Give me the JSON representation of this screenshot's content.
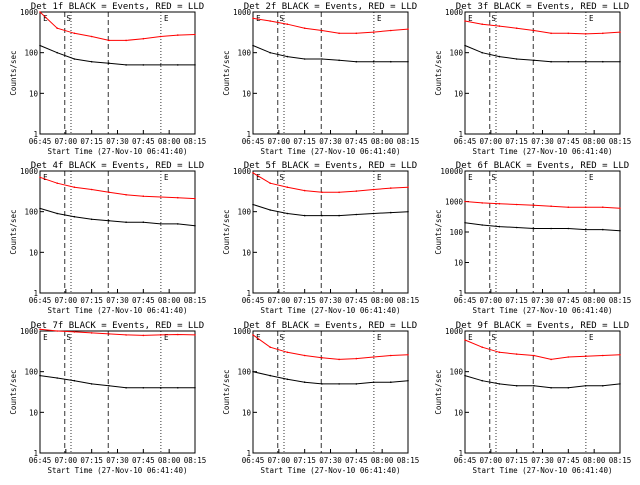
{
  "chart_data": [
    {
      "type": "line",
      "title": "Det 1f BLACK = Events, RED = LLD",
      "xlabel": "Start Time (27-Nov-10 06:41:40)",
      "ylabel": "Counts/sec",
      "yscale": "log",
      "ylim": [
        1,
        1000
      ],
      "xtick_labels": [
        "06:45",
        "07:00",
        "07:15",
        "07:30",
        "07:45",
        "08:00",
        "08:15"
      ],
      "ytick_labels": [
        "1",
        "10",
        "100",
        "1000"
      ],
      "marker_labels": [
        "E",
        "S",
        "E"
      ],
      "series": [
        {
          "color": "#000000",
          "values": [
            [
              0,
              150
            ],
            [
              1,
              100
            ],
            [
              2,
              70
            ],
            [
              3,
              60
            ],
            [
              4,
              55
            ],
            [
              5,
              50
            ],
            [
              6,
              50
            ],
            [
              7,
              50
            ],
            [
              8,
              50
            ],
            [
              9,
              50
            ]
          ]
        },
        {
          "color": "#ff0000",
          "values": [
            [
              0,
              1000
            ],
            [
              1,
              400
            ],
            [
              2,
              300
            ],
            [
              3,
              250
            ],
            [
              4,
              200
            ],
            [
              5,
              200
            ],
            [
              6,
              220
            ],
            [
              7,
              250
            ],
            [
              8,
              270
            ],
            [
              9,
              280
            ]
          ]
        }
      ]
    },
    {
      "type": "line",
      "title": "Det 2f BLACK = Events, RED = LLD",
      "xlabel": "Start Time (27-Nov-10 06:41:40)",
      "ylabel": "Counts/sec",
      "yscale": "log",
      "ylim": [
        1,
        1000
      ],
      "xtick_labels": [
        "06:45",
        "07:00",
        "07:15",
        "07:30",
        "07:45",
        "08:00",
        "08:15"
      ],
      "ytick_labels": [
        "1",
        "10",
        "100",
        "1000"
      ],
      "marker_labels": [
        "E",
        "S",
        "E"
      ],
      "series": [
        {
          "color": "#000000",
          "values": [
            [
              0,
              150
            ],
            [
              1,
              100
            ],
            [
              2,
              80
            ],
            [
              3,
              70
            ],
            [
              4,
              70
            ],
            [
              5,
              65
            ],
            [
              6,
              60
            ],
            [
              7,
              60
            ],
            [
              8,
              60
            ],
            [
              9,
              60
            ]
          ]
        },
        {
          "color": "#ff0000",
          "values": [
            [
              0,
              700
            ],
            [
              1,
              600
            ],
            [
              2,
              500
            ],
            [
              3,
              400
            ],
            [
              4,
              350
            ],
            [
              5,
              300
            ],
            [
              6,
              300
            ],
            [
              7,
              320
            ],
            [
              8,
              350
            ],
            [
              9,
              380
            ]
          ]
        }
      ]
    },
    {
      "type": "line",
      "title": "Det 3f BLACK = Events, RED = LLD",
      "xlabel": "Start Time (27-Nov-10 06:41:40)",
      "ylabel": "Counts/sec",
      "yscale": "log",
      "ylim": [
        1,
        1000
      ],
      "xtick_labels": [
        "06:45",
        "07:00",
        "07:15",
        "07:30",
        "07:45",
        "08:00",
        "08:15"
      ],
      "ytick_labels": [
        "1",
        "10",
        "100",
        "1000"
      ],
      "marker_labels": [
        "E",
        "S",
        "E"
      ],
      "series": [
        {
          "color": "#000000",
          "values": [
            [
              0,
              150
            ],
            [
              1,
              100
            ],
            [
              2,
              80
            ],
            [
              3,
              70
            ],
            [
              4,
              65
            ],
            [
              5,
              60
            ],
            [
              6,
              60
            ],
            [
              7,
              60
            ],
            [
              8,
              60
            ],
            [
              9,
              60
            ]
          ]
        },
        {
          "color": "#ff0000",
          "values": [
            [
              0,
              600
            ],
            [
              1,
              500
            ],
            [
              2,
              450
            ],
            [
              3,
              400
            ],
            [
              4,
              350
            ],
            [
              5,
              300
            ],
            [
              6,
              300
            ],
            [
              7,
              290
            ],
            [
              8,
              300
            ],
            [
              9,
              320
            ]
          ]
        }
      ]
    },
    {
      "type": "line",
      "title": "Det 4f BLACK = Events, RED = LLD",
      "xlabel": "Start Time (27-Nov-10 06:41:40)",
      "ylabel": "Counts/sec",
      "yscale": "log",
      "ylim": [
        1,
        1000
      ],
      "xtick_labels": [
        "06:45",
        "07:00",
        "07:15",
        "07:30",
        "07:45",
        "08:00",
        "08:15"
      ],
      "ytick_labels": [
        "1",
        "10",
        "100",
        "1000"
      ],
      "marker_labels": [
        "E",
        "E"
      ],
      "series": [
        {
          "color": "#000000",
          "values": [
            [
              0,
              120
            ],
            [
              1,
              90
            ],
            [
              2,
              75
            ],
            [
              3,
              65
            ],
            [
              4,
              60
            ],
            [
              5,
              55
            ],
            [
              6,
              55
            ],
            [
              7,
              50
            ],
            [
              8,
              50
            ],
            [
              9,
              45
            ]
          ]
        },
        {
          "color": "#ff0000",
          "values": [
            [
              0,
              700
            ],
            [
              1,
              500
            ],
            [
              2,
              400
            ],
            [
              3,
              350
            ],
            [
              4,
              300
            ],
            [
              5,
              260
            ],
            [
              6,
              240
            ],
            [
              7,
              230
            ],
            [
              8,
              220
            ],
            [
              9,
              210
            ]
          ]
        }
      ]
    },
    {
      "type": "line",
      "title": "Det 5f BLACK = Events, RED = LLD",
      "xlabel": "Start Time (27-Nov-10 06:41:40)",
      "ylabel": "Counts/sec",
      "yscale": "log",
      "ylim": [
        1,
        1000
      ],
      "xtick_labels": [
        "06:45",
        "07:00",
        "07:15",
        "07:30",
        "07:45",
        "08:00",
        "08:15"
      ],
      "ytick_labels": [
        "1",
        "10",
        "100",
        "1000"
      ],
      "marker_labels": [
        "E",
        "S",
        "E"
      ],
      "series": [
        {
          "color": "#000000",
          "values": [
            [
              0,
              150
            ],
            [
              1,
              110
            ],
            [
              2,
              90
            ],
            [
              3,
              80
            ],
            [
              4,
              80
            ],
            [
              5,
              80
            ],
            [
              6,
              85
            ],
            [
              7,
              90
            ],
            [
              8,
              95
            ],
            [
              9,
              100
            ]
          ]
        },
        {
          "color": "#ff0000",
          "values": [
            [
              0,
              900
            ],
            [
              1,
              500
            ],
            [
              2,
              400
            ],
            [
              3,
              330
            ],
            [
              4,
              300
            ],
            [
              5,
              300
            ],
            [
              6,
              320
            ],
            [
              7,
              350
            ],
            [
              8,
              380
            ],
            [
              9,
              400
            ]
          ]
        }
      ]
    },
    {
      "type": "line",
      "title": "Det 6f BLACK = Events, RED = LLD",
      "xlabel": "Start Time (27-Nov-10 06:41:40)",
      "ylabel": "Counts/sec",
      "yscale": "log",
      "ylim": [
        1,
        10000
      ],
      "xtick_labels": [
        "06:45",
        "07:00",
        "07:15",
        "07:30",
        "07:45",
        "08:00",
        "08:15"
      ],
      "ytick_labels": [
        "1",
        "10",
        "100",
        "1000",
        "10000"
      ],
      "marker_labels": [
        "E",
        "S",
        "E"
      ],
      "series": [
        {
          "color": "#000000",
          "values": [
            [
              0,
              200
            ],
            [
              1,
              170
            ],
            [
              2,
              150
            ],
            [
              3,
              140
            ],
            [
              4,
              130
            ],
            [
              5,
              130
            ],
            [
              6,
              130
            ],
            [
              7,
              120
            ],
            [
              8,
              120
            ],
            [
              9,
              110
            ]
          ]
        },
        {
          "color": "#ff0000",
          "values": [
            [
              0,
              1000
            ],
            [
              1,
              900
            ],
            [
              2,
              850
            ],
            [
              3,
              800
            ],
            [
              4,
              750
            ],
            [
              5,
              700
            ],
            [
              6,
              650
            ],
            [
              7,
              650
            ],
            [
              8,
              650
            ],
            [
              9,
              600
            ]
          ]
        }
      ]
    },
    {
      "type": "line",
      "title": "Det 7f BLACK = Events, RED = LLD",
      "xlabel": "Start Time (27-Nov-10 06:41:40)",
      "ylabel": "Counts/sec",
      "yscale": "log",
      "ylim": [
        1,
        1000
      ],
      "xtick_labels": [
        "06:45",
        "07:00",
        "07:15",
        "07:30",
        "07:45",
        "08:00",
        "08:15"
      ],
      "ytick_labels": [
        "1",
        "10",
        "100",
        "1000"
      ],
      "marker_labels": [
        "E",
        "S",
        "E"
      ],
      "series": [
        {
          "color": "#000000",
          "values": [
            [
              0,
              80
            ],
            [
              1,
              70
            ],
            [
              2,
              60
            ],
            [
              3,
              50
            ],
            [
              4,
              45
            ],
            [
              5,
              40
            ],
            [
              6,
              40
            ],
            [
              7,
              40
            ],
            [
              8,
              40
            ],
            [
              9,
              40
            ]
          ]
        },
        {
          "color": "#ff0000",
          "values": [
            [
              0,
              1100
            ],
            [
              1,
              1000
            ],
            [
              2,
              950
            ],
            [
              3,
              900
            ],
            [
              4,
              850
            ],
            [
              5,
              800
            ],
            [
              6,
              780
            ],
            [
              7,
              800
            ],
            [
              8,
              820
            ],
            [
              9,
              800
            ]
          ]
        }
      ]
    },
    {
      "type": "line",
      "title": "Det 8f BLACK = Events, RED = LLD",
      "xlabel": "Start Time (27-Nov-10 06:41:40)",
      "ylabel": "Counts/sec",
      "yscale": "log",
      "ylim": [
        1,
        1000
      ],
      "xtick_labels": [
        "06:45",
        "07:00",
        "07:15",
        "07:30",
        "07:45",
        "08:00",
        "08:15"
      ],
      "ytick_labels": [
        "1",
        "10",
        "100",
        "1000"
      ],
      "marker_labels": [
        "E",
        "S",
        "E"
      ],
      "series": [
        {
          "color": "#000000",
          "values": [
            [
              0,
              100
            ],
            [
              1,
              80
            ],
            [
              2,
              65
            ],
            [
              3,
              55
            ],
            [
              4,
              50
            ],
            [
              5,
              50
            ],
            [
              6,
              50
            ],
            [
              7,
              55
            ],
            [
              8,
              55
            ],
            [
              9,
              60
            ]
          ]
        },
        {
          "color": "#ff0000",
          "values": [
            [
              0,
              800
            ],
            [
              1,
              400
            ],
            [
              2,
              300
            ],
            [
              3,
              250
            ],
            [
              4,
              220
            ],
            [
              5,
              200
            ],
            [
              6,
              210
            ],
            [
              7,
              230
            ],
            [
              8,
              250
            ],
            [
              9,
              260
            ]
          ]
        }
      ]
    },
    {
      "type": "line",
      "title": "Det 9f BLACK = Events, RED = LLD",
      "xlabel": "Start Time (27-Nov-10 06:41:40)",
      "ylabel": "Counts/sec",
      "yscale": "log",
      "ylim": [
        1,
        1000
      ],
      "xtick_labels": [
        "06:45",
        "07:00",
        "07:15",
        "07:30",
        "07:45",
        "08:00",
        "08:15"
      ],
      "ytick_labels": [
        "1",
        "10",
        "100",
        "1000"
      ],
      "marker_labels": [
        "E",
        "S",
        "E"
      ],
      "series": [
        {
          "color": "#000000",
          "values": [
            [
              0,
              80
            ],
            [
              1,
              60
            ],
            [
              2,
              50
            ],
            [
              3,
              45
            ],
            [
              4,
              45
            ],
            [
              5,
              40
            ],
            [
              6,
              40
            ],
            [
              7,
              45
            ],
            [
              8,
              45
            ],
            [
              9,
              50
            ]
          ]
        },
        {
          "color": "#ff0000",
          "values": [
            [
              0,
              600
            ],
            [
              1,
              400
            ],
            [
              2,
              300
            ],
            [
              3,
              270
            ],
            [
              4,
              250
            ],
            [
              5,
              200
            ],
            [
              6,
              230
            ],
            [
              7,
              240
            ],
            [
              8,
              250
            ],
            [
              9,
              260
            ]
          ]
        }
      ]
    }
  ]
}
